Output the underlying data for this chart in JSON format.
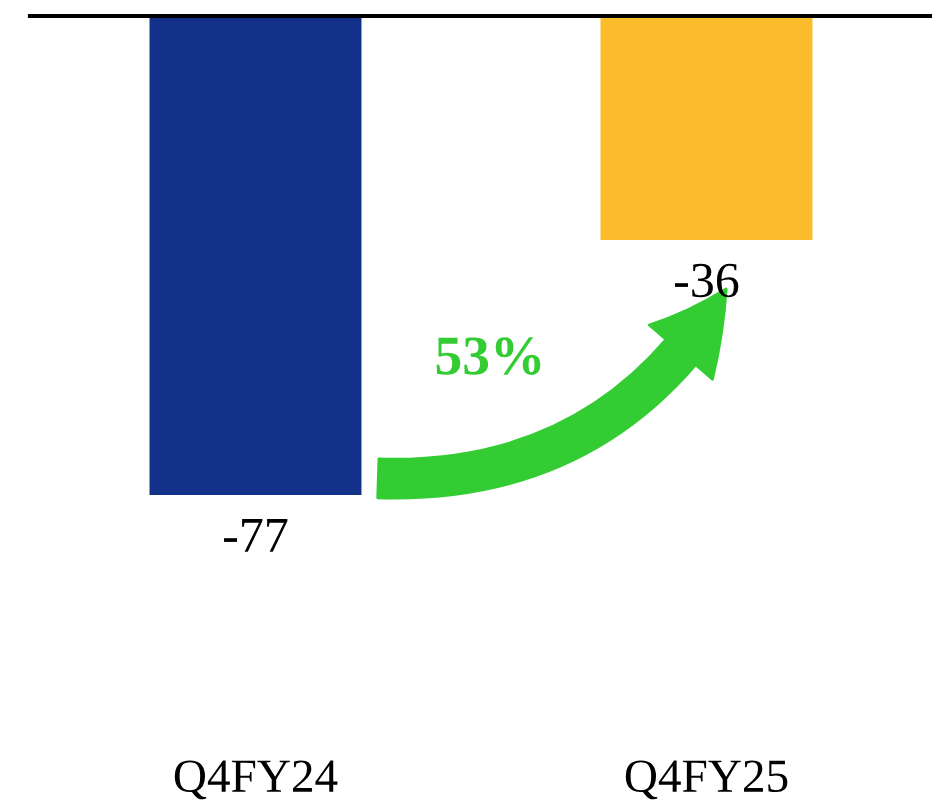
{
  "chart_data": {
    "type": "bar",
    "categories": [
      "Q4FY24",
      "Q4FY25"
    ],
    "values": [
      -77,
      -36
    ],
    "colors": [
      "#14318a",
      "#fbbc2c"
    ],
    "data_labels": true,
    "annotations": [
      "53%"
    ],
    "grid": false,
    "legend": false,
    "tick_labels": "x"
  }
}
